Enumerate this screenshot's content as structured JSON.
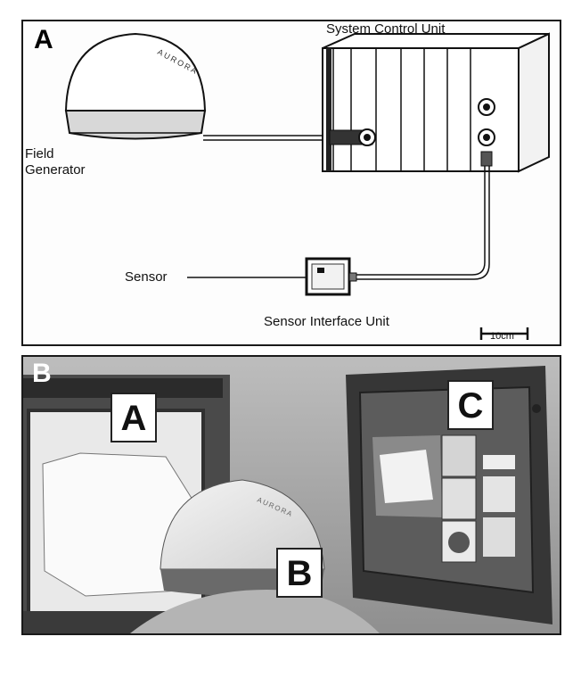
{
  "panel_a": {
    "panel_letter": "A",
    "system_control_unit": "System Control Unit",
    "field_generator": "Field\nGenerator",
    "sensor": "Sensor",
    "sensor_interface_unit": "Sensor Interface Unit",
    "scale_bar": "10cm",
    "brand_logo": "AURORA"
  },
  "panel_b": {
    "panel_letter": "B",
    "labels": [
      "A",
      "B",
      "C"
    ]
  }
}
